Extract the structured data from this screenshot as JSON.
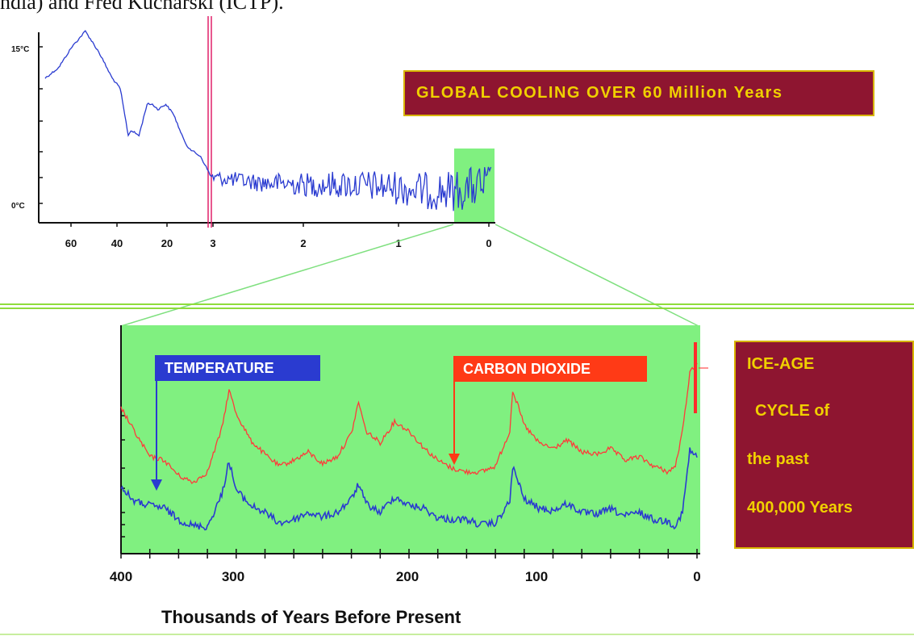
{
  "header": {
    "partial_text": "ndia) and Fred Kucharski (ICTP)."
  },
  "top_chart": {
    "title": "GLOBAL COOLING OVER 60 Million Years"
  },
  "bottom_chart": {
    "legend_temperature": "TEMPERATURE",
    "legend_co2": "CARBON DIOXIDE",
    "side_box_lines": [
      "ICE-AGE",
      "CYCLE of",
      "the past",
      "400,000 Years"
    ],
    "x_axis_title": "Thousands of Years Before Present"
  },
  "colors": {
    "temperature_line": "#2a3bd0",
    "co2_line": "#ff3a3a",
    "highlight_green": "#80f080",
    "title_box": "#8e1530",
    "title_text": "#f0d000",
    "zoom_lines": "#7fe07f",
    "divider": "#8fdc3c",
    "pink_marker": "#e0206a"
  },
  "chart_data": [
    {
      "type": "line",
      "title": "GLOBAL COOLING OVER 60 Million Years",
      "x_tick_labels": [
        "60",
        "40",
        "20",
        "3",
        "2",
        "1",
        "0"
      ],
      "y_tick_labels": [
        "15°C",
        "0°C"
      ],
      "note": "x axis: 60–3 million years (compressed), then 3–0 million years",
      "series": [
        {
          "values_x_myr": [
            65,
            60,
            55,
            50,
            45,
            40,
            37,
            34,
            33,
            30,
            27,
            25,
            23,
            20,
            17,
            14,
            12,
            10,
            7,
            5,
            3,
            2.5,
            2,
            1.5,
            1,
            0.7,
            0.4,
            0.2,
            0
          ],
          "values_c": [
            12,
            13,
            15,
            16.5,
            14.5,
            12,
            11,
            6.5,
            7,
            6.5,
            9.5,
            9.5,
            9,
            9.5,
            8.5,
            6.5,
            5.5,
            5,
            4.5,
            3.5,
            2.5,
            2,
            1.8,
            1.8,
            1.5,
            1.2,
            1.2,
            1.5,
            1.8
          ]
        }
      ]
    },
    {
      "type": "line",
      "xlabel": "Thousands of Years Before Present",
      "x_tick_labels": [
        "400",
        "300",
        "200",
        "100",
        "0"
      ],
      "xlim": [
        400,
        0
      ],
      "series": [
        {
          "name": "TEMPERATURE",
          "x": [
            400,
            390,
            380,
            370,
            360,
            350,
            340,
            330,
            325,
            320,
            310,
            300,
            290,
            280,
            270,
            260,
            250,
            240,
            235,
            230,
            220,
            210,
            200,
            190,
            180,
            170,
            160,
            150,
            140,
            130,
            128,
            120,
            110,
            100,
            90,
            80,
            70,
            60,
            50,
            40,
            30,
            20,
            15,
            10,
            5,
            0
          ],
          "y": [
            0.58,
            0.42,
            0.38,
            0.35,
            0.22,
            0.15,
            0.14,
            0.5,
            0.88,
            0.55,
            0.38,
            0.3,
            0.18,
            0.22,
            0.3,
            0.25,
            0.3,
            0.45,
            0.62,
            0.4,
            0.3,
            0.48,
            0.38,
            0.35,
            0.24,
            0.22,
            0.22,
            0.16,
            0.18,
            0.42,
            0.82,
            0.45,
            0.35,
            0.32,
            0.4,
            0.3,
            0.28,
            0.34,
            0.26,
            0.3,
            0.22,
            0.2,
            0.15,
            0.3,
            1.0,
            0.92
          ]
        },
        {
          "name": "CARBON DIOXIDE",
          "x": [
            400,
            390,
            380,
            370,
            360,
            350,
            340,
            330,
            325,
            320,
            310,
            300,
            290,
            280,
            270,
            260,
            250,
            240,
            235,
            230,
            220,
            210,
            200,
            190,
            180,
            170,
            160,
            150,
            140,
            130,
            128,
            120,
            110,
            100,
            90,
            80,
            70,
            60,
            50,
            40,
            30,
            20,
            15,
            10,
            5,
            0
          ],
          "y": [
            1.0,
            0.78,
            0.58,
            0.55,
            0.42,
            0.36,
            0.45,
            0.82,
            1.15,
            0.95,
            0.72,
            0.6,
            0.5,
            0.55,
            0.62,
            0.52,
            0.58,
            0.78,
            1.05,
            0.8,
            0.7,
            0.88,
            0.8,
            0.66,
            0.55,
            0.48,
            0.45,
            0.45,
            0.5,
            0.8,
            1.15,
            0.85,
            0.7,
            0.65,
            0.72,
            0.62,
            0.6,
            0.65,
            0.55,
            0.58,
            0.5,
            0.45,
            0.5,
            0.8,
            1.3,
            1.38
          ]
        }
      ]
    }
  ]
}
